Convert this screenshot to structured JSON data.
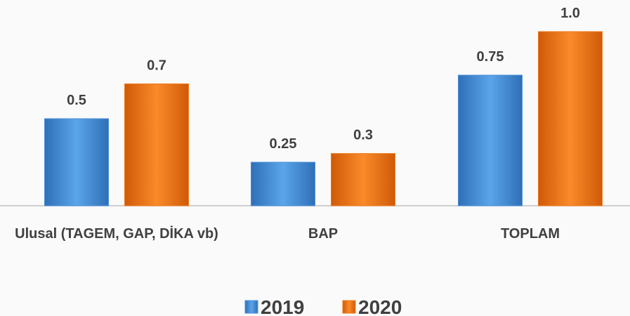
{
  "chart_data": {
    "type": "bar",
    "categories": [
      "Ulusal (TAGEM, GAP, DİKA vb)",
      "BAP",
      "TOPLAM"
    ],
    "series": [
      {
        "name": "2019",
        "color": "#4a90d9",
        "values": [
          0.5,
          0.25,
          0.75
        ]
      },
      {
        "name": "2020",
        "color": "#f07a1a",
        "values": [
          0.7,
          0.3,
          1.0
        ],
        "value_labels": [
          "0.7",
          "0.3",
          "1.0"
        ]
      }
    ],
    "legend": "bottom"
  }
}
